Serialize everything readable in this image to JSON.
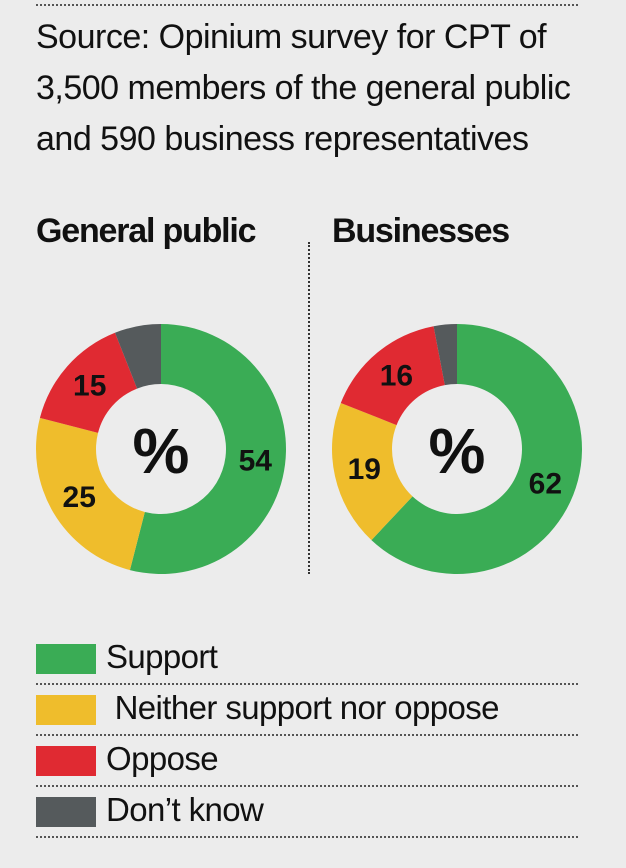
{
  "source": {
    "lines": [
      "Source: Opinium survey for CPT of",
      "3,500 members of the general public",
      "and 590 business representatives"
    ]
  },
  "colors": {
    "Support": "#3aac55",
    "Neither support nor oppose": "#efbd2c",
    "Oppose": "#e02a32",
    "Don’t know": "#555a5c"
  },
  "chart_data": [
    {
      "type": "pie",
      "title": "General public",
      "center_label": "%",
      "categories": [
        "Support",
        "Neither support nor oppose",
        "Oppose",
        "Don’t know"
      ],
      "values": [
        54,
        25,
        15,
        6
      ],
      "labels_shown": [
        "54",
        "25",
        "15",
        ""
      ]
    },
    {
      "type": "pie",
      "title": "Businesses",
      "center_label": "%",
      "categories": [
        "Support",
        "Neither support nor oppose",
        "Oppose",
        "Don’t know"
      ],
      "values": [
        62,
        19,
        16,
        3
      ],
      "labels_shown": [
        "62",
        "19",
        "16",
        ""
      ]
    }
  ],
  "legend": [
    {
      "label": "Support",
      "color": "#3aac55"
    },
    {
      "label": " Neither support nor oppose",
      "color": "#efbd2c"
    },
    {
      "label": "Oppose",
      "color": "#e02a32"
    },
    {
      "label": "Don’t know",
      "color": "#555a5c"
    }
  ]
}
